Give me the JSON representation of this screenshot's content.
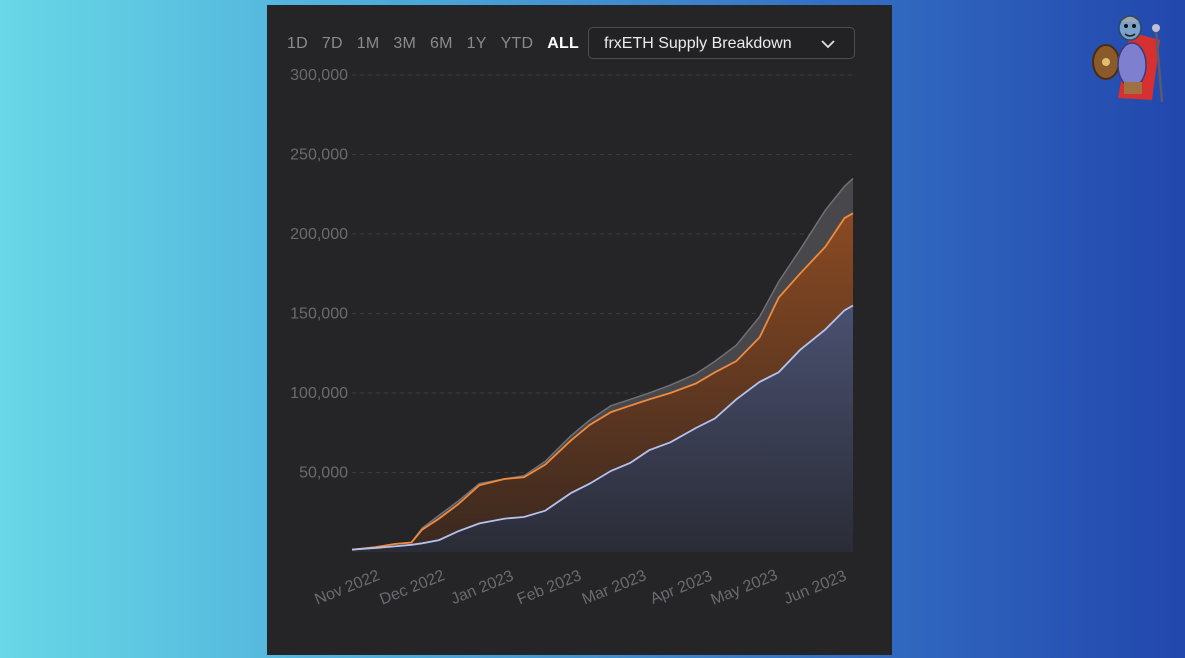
{
  "toolbar": {
    "ranges": [
      "1D",
      "7D",
      "1M",
      "3M",
      "6M",
      "1Y",
      "YTD",
      "ALL"
    ],
    "active_range": "ALL"
  },
  "dropdown": {
    "selected": "frxETH Supply Breakdown",
    "icon": "chevron-down-icon"
  },
  "colors": {
    "page_bg_left": "#68d7e6",
    "page_bg_right": "#2247ad",
    "panel_bg": "#252527",
    "total": "#6f6f74",
    "orange": "#f08a3e",
    "blue": "#b6c2ee"
  },
  "mascot": {
    "icon": "armored-warrior-mascot-icon"
  },
  "chart_data": {
    "type": "area",
    "title": "",
    "xlabel": "",
    "ylabel": "",
    "yticks": [
      "300,000",
      "250,000",
      "200,000",
      "150,000",
      "100,000",
      "50,000"
    ],
    "ylim": [
      0,
      300000
    ],
    "xticks": [
      "Nov 2022",
      "Dec 2022",
      "Jan 2023",
      "Feb 2023",
      "Mar 2023",
      "Apr 2023",
      "May 2023",
      "Jun 2023"
    ],
    "grid": true,
    "legend": "none",
    "x": [
      "2022-10-21",
      "2022-11-01",
      "2022-11-10",
      "2022-11-18",
      "2022-11-23",
      "2022-12-01",
      "2022-12-10",
      "2022-12-20",
      "2023-01-01",
      "2023-01-10",
      "2023-01-20",
      "2023-02-01",
      "2023-02-10",
      "2023-02-20",
      "2023-03-01",
      "2023-03-10",
      "2023-03-20",
      "2023-04-01",
      "2023-04-10",
      "2023-04-20",
      "2023-05-01",
      "2023-05-10",
      "2023-05-20",
      "2023-06-01",
      "2023-06-10",
      "2023-06-14"
    ],
    "series": [
      {
        "values": [
          1500,
          3000,
          5000,
          6000,
          15000,
          23000,
          32000,
          43000,
          46000,
          48000,
          57000,
          73000,
          83000,
          92000,
          96000,
          100000,
          105000,
          112000,
          120000,
          130000,
          148000,
          170000,
          190000,
          215000,
          230000,
          235000
        ]
      },
      {
        "values": [
          1500,
          3000,
          5000,
          6000,
          14000,
          21000,
          30000,
          42000,
          46000,
          47000,
          55000,
          70000,
          80000,
          88000,
          92000,
          96000,
          100000,
          106000,
          113000,
          120000,
          135000,
          160000,
          175000,
          192000,
          210000,
          213000
        ]
      },
      {
        "values": [
          1500,
          2500,
          3500,
          4500,
          5500,
          7500,
          13000,
          18000,
          21000,
          22000,
          26000,
          37000,
          43000,
          51000,
          56000,
          64000,
          69000,
          78000,
          84000,
          96000,
          107000,
          113000,
          127000,
          140000,
          152000,
          155000
        ]
      }
    ]
  }
}
